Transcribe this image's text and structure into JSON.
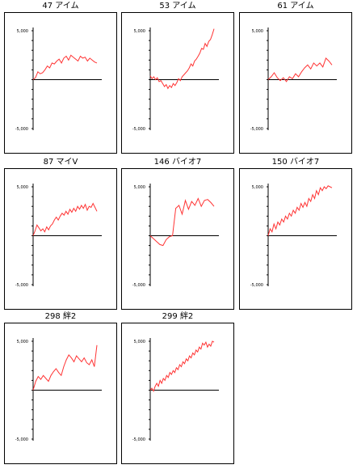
{
  "colors": {
    "line": "#ff3333",
    "axis": "#000000",
    "border": "#000000"
  },
  "chart_data": [
    {
      "type": "line",
      "title": "47 アイム",
      "ylim": [
        -5000,
        5000
      ],
      "yticks": [
        "5,000",
        "-5,000"
      ],
      "values": [
        0,
        200,
        800,
        600,
        700,
        1000,
        1400,
        1200,
        1700,
        1600,
        1900,
        2100,
        1700,
        2200,
        2400,
        2000,
        2500,
        2300,
        2100,
        1900,
        2400,
        2200,
        2300,
        1900,
        2200,
        2000,
        1800,
        1700
      ]
    },
    {
      "type": "line",
      "title": "53 アイム",
      "ylim": [
        -5000,
        5000
      ],
      "yticks": [
        "5,000",
        "-5,000"
      ],
      "values": [
        400,
        100,
        300,
        0,
        200,
        -200,
        -100,
        -400,
        -700,
        -500,
        -900,
        -600,
        -800,
        -400,
        -600,
        -300,
        100,
        -100,
        300,
        500,
        700,
        900,
        1200,
        1600,
        1400,
        1900,
        2100,
        2400,
        2700,
        3200,
        3100,
        3700,
        3400,
        3900,
        4100,
        4600,
        5200
      ]
    },
    {
      "type": "line",
      "title": "61 アイム",
      "ylim": [
        -5000,
        5000
      ],
      "yticks": [
        "5,000",
        "-5,000"
      ],
      "values": [
        0,
        300,
        700,
        200,
        -100,
        200,
        -200,
        300,
        100,
        600,
        300,
        800,
        1200,
        1500,
        1100,
        1700,
        1400,
        1700,
        1300,
        2200,
        1900,
        1500
      ]
    },
    {
      "type": "line",
      "title": "87 マイV",
      "ylim": [
        -5000,
        5000
      ],
      "yticks": [
        "5,000",
        "-5,000"
      ],
      "values": [
        0,
        500,
        1100,
        800,
        500,
        700,
        400,
        900,
        600,
        1000,
        1200,
        1600,
        1900,
        1600,
        2000,
        2300,
        2100,
        2500,
        2200,
        2700,
        2400,
        2800,
        2500,
        3000,
        2700,
        3100,
        2800,
        3200,
        2600,
        3000,
        2900,
        3300,
        2900,
        2500
      ]
    },
    {
      "type": "line",
      "title": "146 バイオ7",
      "ylim": [
        -5000,
        5000
      ],
      "yticks": [
        "5,000",
        "-5,000"
      ],
      "values": [
        0,
        -300,
        -600,
        -900,
        -1000,
        -400,
        -100,
        0,
        2800,
        3100,
        2200,
        3600,
        2700,
        3500,
        3100,
        3800,
        3000,
        3600,
        3700,
        3400,
        3000
      ]
    },
    {
      "type": "line",
      "title": "150 バイオ7",
      "ylim": [
        -5000,
        5000
      ],
      "yticks": [
        "5,000",
        "-5,000"
      ],
      "values": [
        0,
        700,
        400,
        1200,
        700,
        1400,
        1100,
        1700,
        1400,
        2000,
        1700,
        2300,
        2000,
        2600,
        2300,
        2900,
        2600,
        3300,
        2900,
        3400,
        3000,
        3800,
        3500,
        4200,
        3800,
        4600,
        4200,
        4900,
        4600,
        5000,
        4800,
        5100,
        5000,
        4900
      ]
    },
    {
      "type": "line",
      "title": "298 絆2",
      "ylim": [
        -5000,
        5000
      ],
      "yticks": [
        "5,000",
        "-5,000"
      ],
      "values": [
        0,
        900,
        1400,
        1100,
        1500,
        1200,
        900,
        1500,
        1900,
        2200,
        1800,
        1500,
        2400,
        3100,
        3600,
        3300,
        2900,
        3500,
        3200,
        2900,
        3300,
        2800,
        2600,
        3100,
        2400,
        4600
      ]
    },
    {
      "type": "line",
      "title": "299 絆2",
      "ylim": [
        -5000,
        5000
      ],
      "yticks": [
        "5,000",
        "-5,000"
      ],
      "values": [
        0,
        200,
        -100,
        400,
        700,
        400,
        1000,
        700,
        1200,
        1000,
        1500,
        1300,
        1800,
        1600,
        2000,
        1800,
        2300,
        2100,
        2600,
        2400,
        2900,
        2700,
        3200,
        3000,
        3500,
        3300,
        3800,
        3600,
        4100,
        3900,
        4400,
        4200,
        4800,
        4600,
        4900,
        4400,
        4700,
        4500,
        5000,
        4900
      ]
    }
  ]
}
